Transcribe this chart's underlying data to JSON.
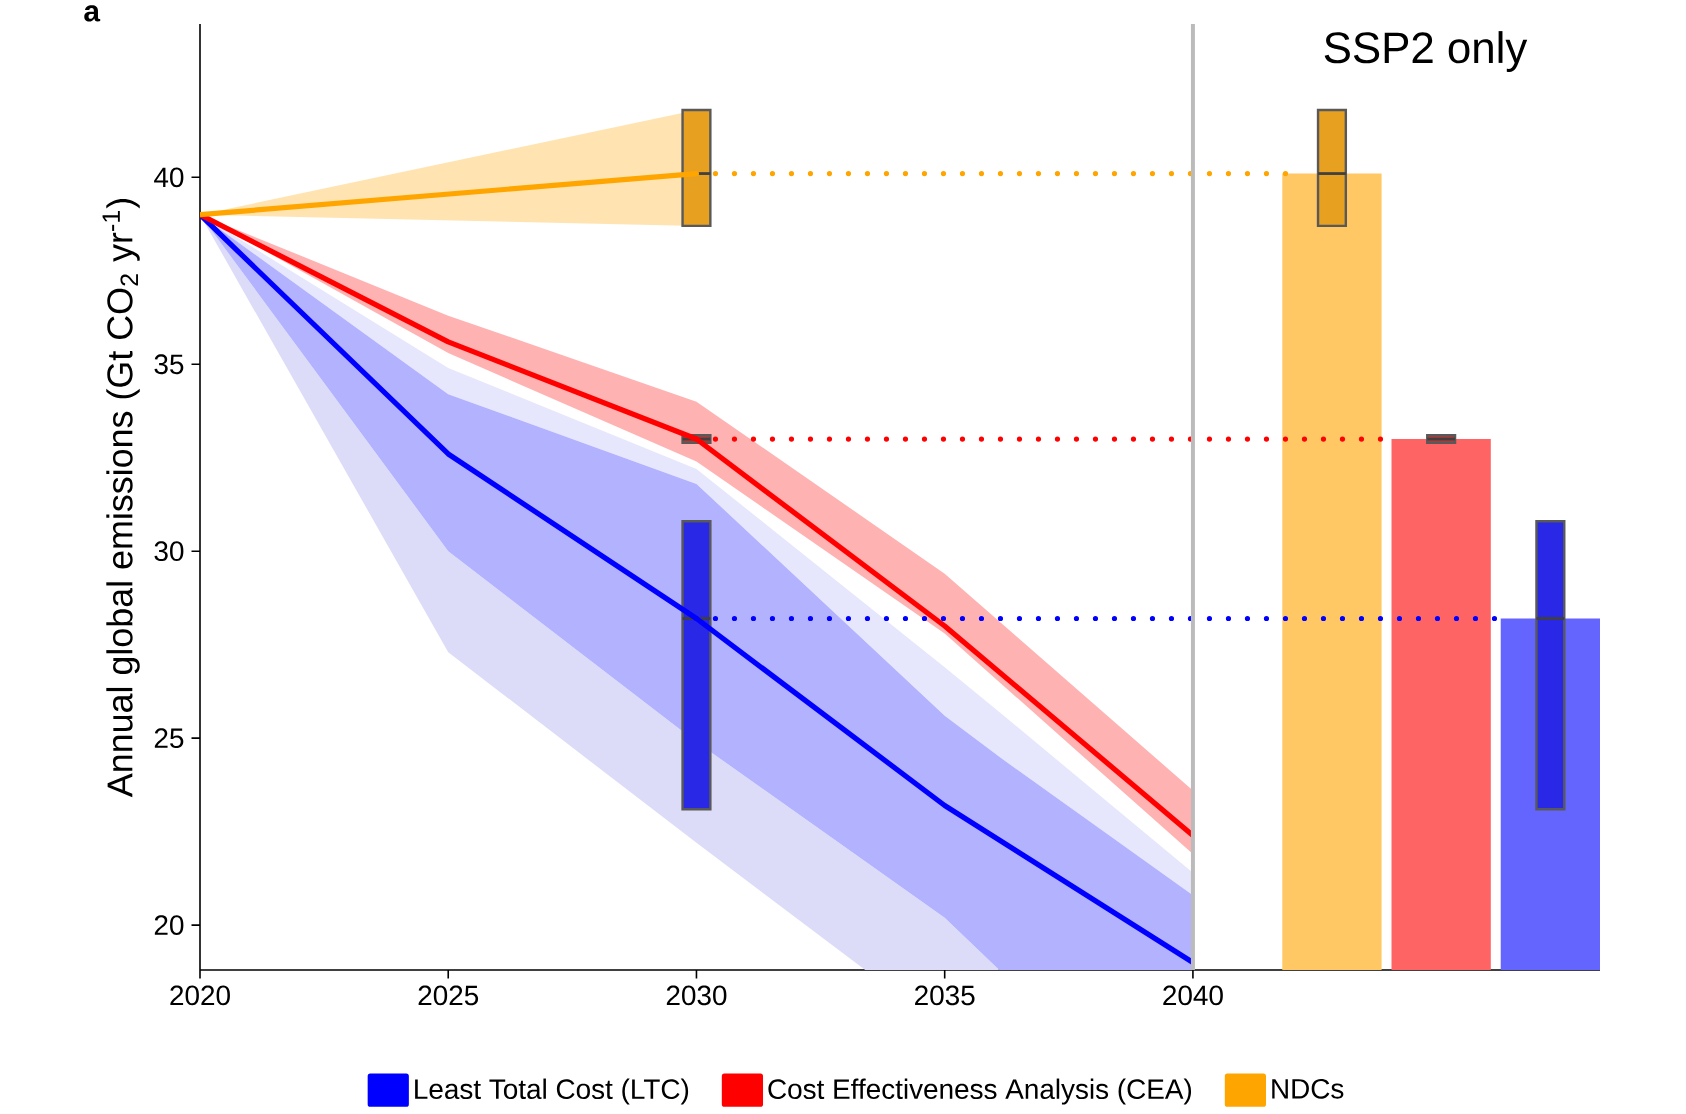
{
  "chart_data": {
    "type": "line",
    "ylabel": "Annual global emissions (Gt CO$_{2}$ yr$^{-1}$)",
    "annotations": [
      "a",
      "SSP2 only"
    ],
    "xlim": [
      2020,
      2048.2
    ],
    "ylim": [
      18.8,
      44.1
    ],
    "xticks": [
      2020,
      2025,
      2030,
      2035,
      2040
    ],
    "yticks": [
      20,
      25,
      30,
      35,
      40
    ],
    "grid": false,
    "legend": "bottom",
    "ref_lines": [
      {
        "axis": "x",
        "value": 2040,
        "label": null,
        "color": "#bbbbbb"
      }
    ],
    "series": [
      {
        "name": "Least Total Cost (LTC)",
        "color": "#0000ff",
        "x": [
          2020,
          2025,
          2030,
          2035,
          2036.1,
          2040
        ],
        "values": [
          39,
          32.6,
          28.2,
          23.2,
          null,
          19.0
        ],
        "lower": [
          39,
          30.0,
          24.9,
          20.2,
          18.8,
          18.8
        ],
        "upper": [
          39,
          34.2,
          31.8,
          25.6,
          24.5,
          20.8
        ]
      },
      {
        "name": "Cost Effectiveness Analysis (CEA)",
        "color": "#ff0000",
        "x": [
          2020,
          2025,
          2030,
          2035,
          2040
        ],
        "values": [
          39,
          35.6,
          33.0,
          28.0,
          22.4
        ],
        "lower": [
          39,
          35.3,
          32.4,
          27.8,
          21.9
        ],
        "upper": [
          39,
          36.3,
          34.0,
          29.4,
          23.6
        ]
      },
      {
        "name": "NDCs",
        "color": "#ffa500",
        "x": [
          2020,
          2030
        ],
        "values": [
          39,
          40.1
        ],
        "lower": [
          39,
          38.7
        ],
        "upper": [
          39,
          41.8
        ]
      },
      {
        "line_style": "dotted",
        "color": "#ffa500",
        "x": [
          2030,
          2041.9
        ],
        "values": [
          40.1,
          40.1
        ]
      },
      {
        "line_style": "dotted",
        "color": "#ff0000",
        "x": [
          2030,
          2043.9
        ],
        "values": [
          33.0,
          33.0
        ]
      },
      {
        "line_style": "dotted",
        "color": "#0000ff",
        "x": [
          2030,
          2046.4
        ],
        "values": [
          28.2,
          28.2
        ]
      },
      {
        "type": "bar",
        "color": "#ffc864",
        "x": [
          2042.8
        ],
        "values": [
          40.1
        ]
      },
      {
        "type": "bar",
        "color": "#ff6464",
        "x": [
          2045.0
        ],
        "values": [
          33.0
        ]
      },
      {
        "type": "bar",
        "color": "#6464ff",
        "x": [
          2047.2
        ],
        "values": [
          28.2
        ]
      },
      {
        "type": "box",
        "color": "#e8a020",
        "x": [
          2030,
          2042.8
        ],
        "boxes": [
          {
            "low": 38.7,
            "q1": 38.7,
            "median": 40.1,
            "q3": 41.8,
            "high": 41.8
          },
          {
            "low": 38.7,
            "q1": 38.7,
            "median": 40.1,
            "q3": 41.8,
            "high": 41.8
          }
        ]
      },
      {
        "type": "box",
        "color": "#c83232",
        "x": [
          2030,
          2045.0
        ],
        "boxes": [
          {
            "low": 32.9,
            "q1": 32.9,
            "median": 33.0,
            "q3": 33.1,
            "high": 33.1
          },
          {
            "low": 32.9,
            "q1": 32.9,
            "median": 33.0,
            "q3": 33.1,
            "high": 33.1
          }
        ]
      },
      {
        "type": "box",
        "color": "#2828e6",
        "x": [
          2030,
          2047.2
        ],
        "boxes": [
          {
            "low": 23.1,
            "q1": 23.1,
            "median": 28.2,
            "q3": 30.8,
            "high": 30.8
          },
          {
            "low": 23.1,
            "q1": 23.1,
            "median": 28.2,
            "q3": 30.8,
            "high": 30.8
          }
        ]
      },
      {
        "color": "#e6e6fc",
        "x": [
          2020,
          2025,
          2030,
          2035,
          2036.1,
          2040
        ],
        "values": [
          null,
          null,
          null,
          null,
          null,
          null
        ],
        "lower": [
          39,
          34.2,
          31.8,
          25.6,
          24.5,
          20.8
        ],
        "upper": [
          39,
          34.9,
          32.2,
          26.9,
          25.7,
          21.4
        ]
      },
      {
        "color": "#dcdcf9",
        "x": [
          2020,
          2025,
          2030,
          2033.4,
          2035,
          2036.1
        ],
        "values": [
          null,
          null,
          null,
          null,
          null,
          null
        ],
        "lower": [
          39,
          27.3,
          22.2,
          18.8,
          18.8,
          18.8
        ],
        "upper": [
          39,
          30.0,
          24.9,
          21.7,
          20.2,
          18.8
        ]
      }
    ]
  }
}
